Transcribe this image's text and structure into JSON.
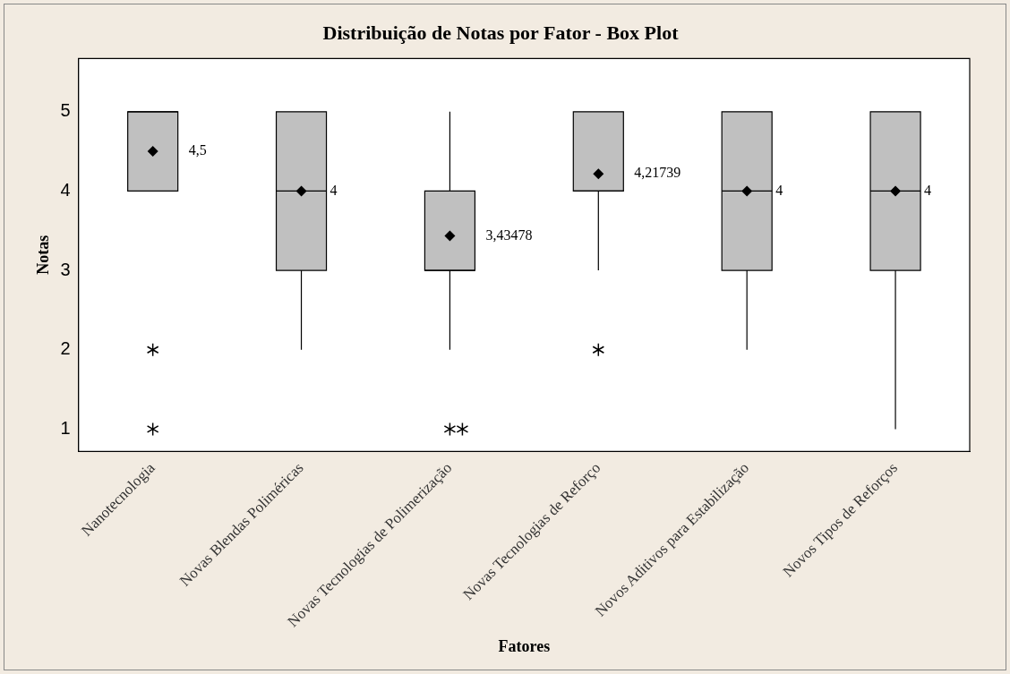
{
  "chart_data": {
    "type": "box",
    "title": "Distribuição de Notas por Fator - Box Plot",
    "xlabel": "Fatores",
    "ylabel": "Notas",
    "categories": [
      "Nanotecnologia",
      "Novas Blendas Poliméricas",
      "Novas Tecnologias de Polimerização",
      "Novas Tecnologias de Reforço",
      "Novos Aditivos para Estabilização",
      "Novos Tipos de Reforços"
    ],
    "color": "#c0c0c0",
    "boxes": [
      {
        "low": 4,
        "q1": 4,
        "median": 5,
        "q3": 5,
        "high": 5,
        "mean": 4.5,
        "outliers": [
          2,
          1
        ]
      },
      {
        "low": 2,
        "q1": 3,
        "median": 4,
        "q3": 5,
        "high": 5,
        "mean": 4
      },
      {
        "low": 2,
        "q1": 3,
        "median": 3,
        "q3": 4,
        "high": 5,
        "mean": 3.43478,
        "outliers": [
          1,
          1
        ]
      },
      {
        "low": 3,
        "q1": 4,
        "median": 4,
        "q3": 5,
        "high": 5,
        "mean": 4.21739,
        "outliers": [
          2
        ]
      },
      {
        "low": 2,
        "q1": 3,
        "median": 4,
        "q3": 5,
        "high": 5,
        "mean": 4
      },
      {
        "low": 1,
        "q1": 3,
        "median": 4,
        "q3": 5,
        "high": 5,
        "mean": 4
      }
    ],
    "annotations": [
      "4,5",
      "4",
      "3,43478",
      "4,21739",
      "4",
      "4"
    ],
    "ylim": [
      0.72,
      5.67
    ],
    "yticks": [
      1,
      2,
      3,
      4,
      5
    ],
    "grid": false,
    "legend": false
  }
}
